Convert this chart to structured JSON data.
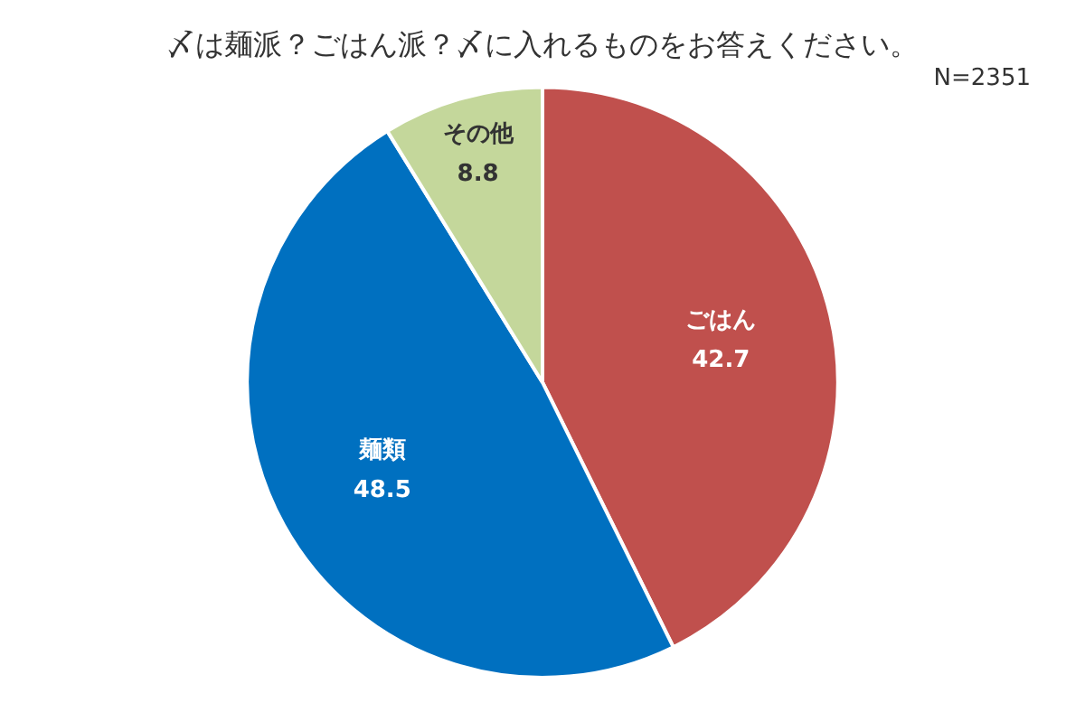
{
  "chart_data": {
    "type": "pie",
    "title": "〆は麺派？ごはん派？〆に入れるものをお答えください。",
    "annotations": [
      "N=2351"
    ],
    "categories": [
      "ごはん",
      "麺類",
      "その他"
    ],
    "values": [
      42.7,
      48.5,
      8.8
    ],
    "colors": [
      "#c0504d",
      "#0070c0",
      "#c4d79b"
    ],
    "data_labels": true,
    "legend": false
  }
}
